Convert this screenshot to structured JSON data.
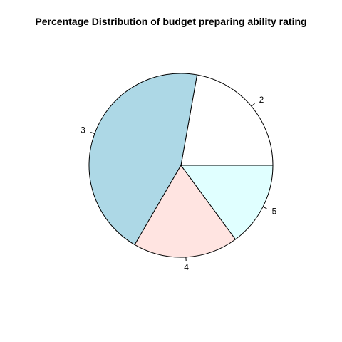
{
  "chart_data": {
    "type": "pie",
    "title": "Percentage Distribution of budget preparing ability rating",
    "categories": [
      "2",
      "3",
      "4",
      "5"
    ],
    "values": [
      22.2,
      44.4,
      18.5,
      14.9
    ],
    "colors": [
      "#ffffff",
      "#add8e6",
      "#ffe4e1",
      "#e0ffff"
    ],
    "start_angle_deg": 0,
    "direction": "counterclockwise",
    "legend": "none"
  }
}
